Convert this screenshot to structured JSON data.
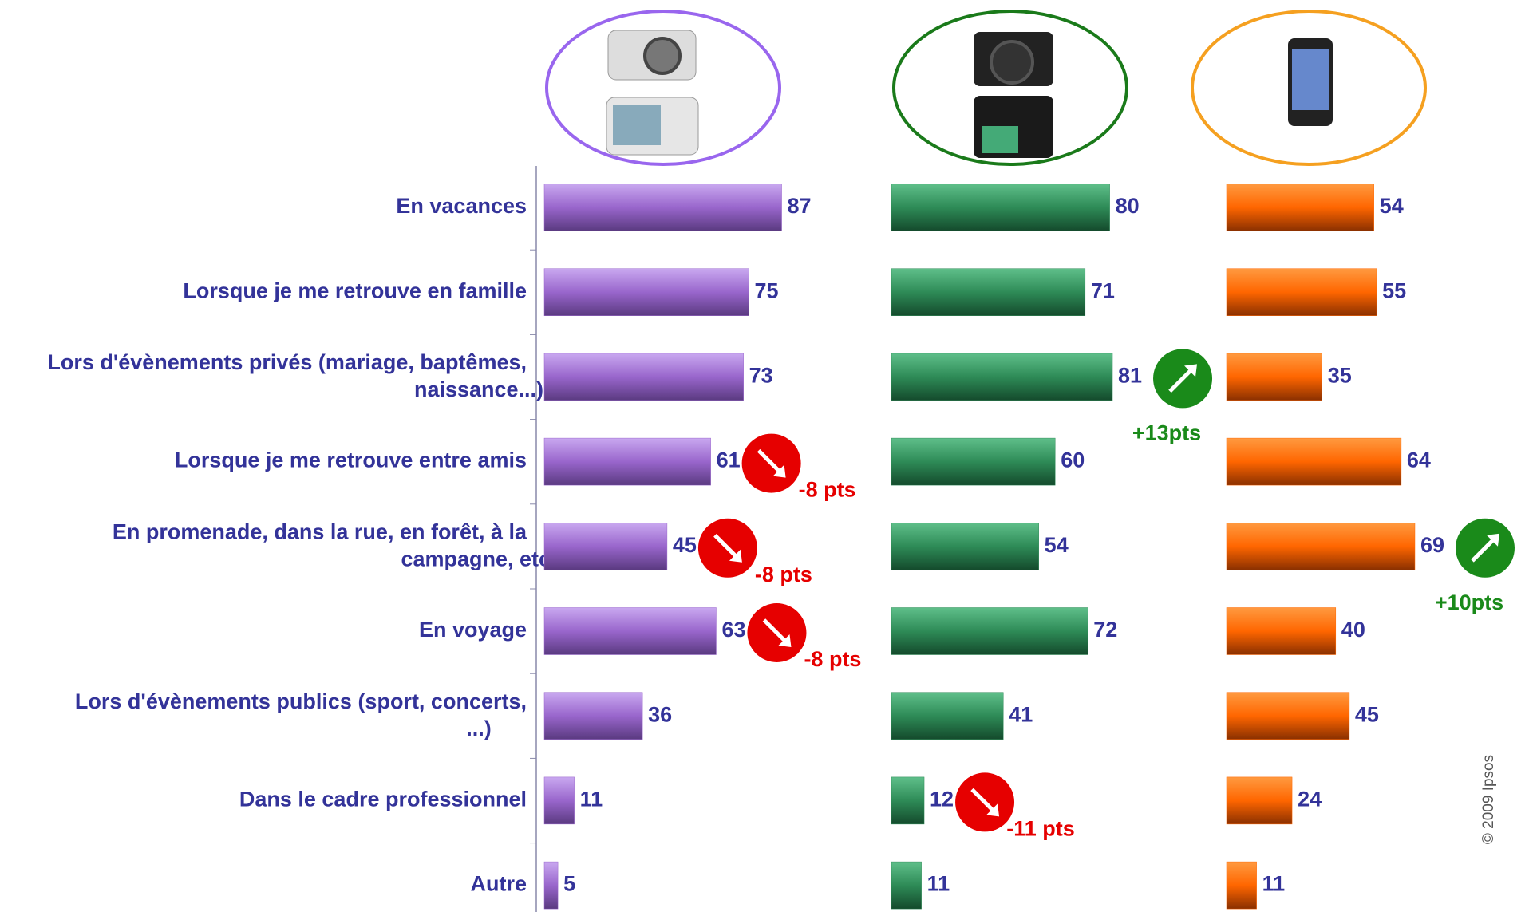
{
  "chart_data": {
    "type": "bar",
    "categories": [
      "En vacances",
      "Lorsque je me retrouve en famille",
      "Lors d'évènements privés (mariage, baptêmes, naissance...)",
      "Lorsque je me retrouve entre amis",
      "En promenade, dans la rue, en forêt, à la campagne, etc.",
      "En voyage",
      "Lors d'évènements publics (sport, concerts, ...)",
      "Dans le cadre professionnel",
      "Autre"
    ],
    "series": [
      {
        "color": "#9966cc",
        "outline": "#9966ee",
        "values": [
          87,
          75,
          73,
          61,
          45,
          63,
          36,
          11,
          5
        ],
        "annotations": [
          {
            "category": "Lorsque je me retrouve entre amis",
            "text": "-8 pts",
            "direction": "down"
          },
          {
            "category": "En promenade, dans la rue, en forêt, à la campagne, etc.",
            "text": "-8 pts",
            "direction": "down"
          },
          {
            "category": "En voyage",
            "text": "-8 pts",
            "direction": "down"
          }
        ]
      },
      {
        "color": "#2e8b57",
        "outline": "#1a7a1a",
        "values": [
          80,
          71,
          81,
          60,
          54,
          72,
          41,
          12,
          11
        ],
        "annotations": [
          {
            "category": "Lors d'évènements privés (mariage, baptêmes, naissance...)",
            "text": "+13pts",
            "direction": "up"
          },
          {
            "category": "Dans le cadre professionnel",
            "text": "-11 pts",
            "direction": "down"
          }
        ]
      },
      {
        "color": "#ff6600",
        "outline": "#f5a020",
        "values": [
          54,
          55,
          35,
          64,
          69,
          40,
          45,
          24,
          11
        ],
        "annotations": [
          {
            "category": "En promenade, dans la rue, en forêt, à la campagne, etc.",
            "text": "+10pts",
            "direction": "up"
          }
        ]
      }
    ],
    "copyright": "© 2009 Ipsos"
  }
}
